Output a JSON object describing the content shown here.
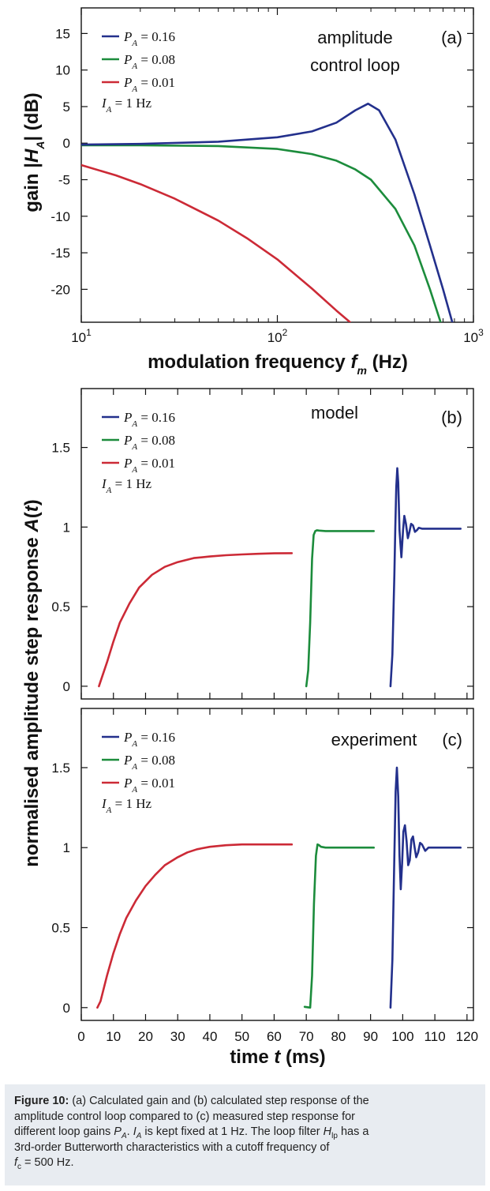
{
  "chart_data": [
    {
      "type": "line",
      "panel_tag": "(a)",
      "annotation": [
        "amplitude",
        "control loop"
      ],
      "ylabel": "gain |H_A| (dB)",
      "xlabel": "modulation frequency f_m (Hz)",
      "xscale": "log",
      "xlim": [
        10,
        1000
      ],
      "ylim": [
        -24.5,
        18.5
      ],
      "xticks": [
        "10^1",
        "10^2",
        "10^3"
      ],
      "yticks": [
        15,
        10,
        5,
        0,
        -5,
        -10,
        -15,
        -20
      ],
      "legend_position": "top-left",
      "legend_note": "I_A = 1 Hz",
      "series": [
        {
          "name": "P_A = 0.16",
          "color": "#23308c",
          "x": [
            10,
            20,
            50,
            100,
            150,
            200,
            250,
            290,
            330,
            400,
            500,
            600,
            700,
            780
          ],
          "y": [
            -0.2,
            -0.1,
            0.2,
            0.8,
            1.6,
            2.8,
            4.5,
            5.4,
            4.5,
            0.5,
            -7,
            -14,
            -20,
            -24.5
          ]
        },
        {
          "name": "P_A = 0.08",
          "color": "#1c8c3c",
          "x": [
            10,
            20,
            50,
            100,
            150,
            200,
            250,
            300,
            400,
            500,
            600,
            680
          ],
          "y": [
            -0.3,
            -0.3,
            -0.4,
            -0.8,
            -1.5,
            -2.4,
            -3.6,
            -5.0,
            -9.0,
            -14.0,
            -20.0,
            -24.5
          ]
        },
        {
          "name": "P_A = 0.01",
          "color": "#cc2a36",
          "x": [
            10,
            15,
            20,
            30,
            50,
            70,
            100,
            150,
            200,
            235
          ],
          "y": [
            -3.0,
            -4.4,
            -5.6,
            -7.6,
            -10.6,
            -13.0,
            -15.9,
            -19.9,
            -22.9,
            -24.5
          ]
        }
      ]
    },
    {
      "type": "line",
      "panel_tag": "(b)",
      "annotation": [
        "model"
      ],
      "ylabel": "",
      "xlabel": "",
      "xlim": [
        0,
        122
      ],
      "ylim": [
        -0.08,
        1.87
      ],
      "yticks": [
        "0",
        "0.5",
        "1",
        "1.5"
      ],
      "legend_position": "top-left",
      "legend_note": "I_A = 1 Hz",
      "series": [
        {
          "name": "P_A = 0.16",
          "color": "#23308c",
          "x": [
            96.2,
            96.8,
            97.4,
            97.7,
            98.0,
            98.3,
            98.6,
            99.0,
            99.6,
            100.1,
            100.5,
            101.0,
            101.6,
            102.1,
            102.6,
            103.2,
            103.8,
            104.4,
            105.0,
            106.0,
            108,
            112,
            118
          ],
          "y": [
            0,
            0.2,
            0.7,
            1.0,
            1.25,
            1.37,
            1.28,
            0.98,
            0.81,
            0.98,
            1.07,
            1.02,
            0.93,
            0.97,
            1.02,
            1.01,
            0.97,
            0.98,
            0.995,
            0.99,
            0.99,
            0.99,
            0.99
          ]
        },
        {
          "name": "P_A = 0.08",
          "color": "#1c8c3c",
          "x": [
            70.0,
            70.6,
            71.2,
            71.8,
            72.3,
            72.8,
            73.3,
            74,
            76,
            80,
            91
          ],
          "y": [
            0,
            0.1,
            0.4,
            0.8,
            0.95,
            0.975,
            0.98,
            0.978,
            0.975,
            0.975,
            0.975
          ]
        },
        {
          "name": "P_A = 0.01",
          "color": "#cc2a36",
          "x": [
            5.5,
            6,
            8,
            10,
            12,
            15,
            18,
            22,
            26,
            30,
            35,
            40,
            45,
            50,
            55,
            60,
            65.5
          ],
          "y": [
            0,
            0.03,
            0.15,
            0.28,
            0.4,
            0.52,
            0.62,
            0.7,
            0.75,
            0.78,
            0.805,
            0.815,
            0.823,
            0.828,
            0.832,
            0.835,
            0.836
          ]
        }
      ]
    },
    {
      "type": "line",
      "panel_tag": "(c)",
      "annotation": [
        "experiment"
      ],
      "ylabel": "",
      "xlabel": "time t (ms)",
      "xlim": [
        0,
        122
      ],
      "ylim": [
        -0.08,
        1.87
      ],
      "xticks": [
        "0",
        "10",
        "20",
        "30",
        "40",
        "50",
        "60",
        "70",
        "80",
        "90",
        "100",
        "110",
        "120"
      ],
      "yticks": [
        "0",
        "0.5",
        "1",
        "1.5"
      ],
      "legend_position": "top-left",
      "legend_note": "I_A = 1 Hz",
      "series": [
        {
          "name": "P_A = 0.16",
          "color": "#23308c",
          "x": [
            96.2,
            96.8,
            97.4,
            97.8,
            98.2,
            98.6,
            99.0,
            99.4,
            99.8,
            100.2,
            100.7,
            101.2,
            101.7,
            102.2,
            102.7,
            103.2,
            103.7,
            104.2,
            104.8,
            105.4,
            106,
            107,
            108,
            110,
            114,
            118
          ],
          "y": [
            0,
            0.3,
            0.95,
            1.35,
            1.5,
            1.32,
            0.95,
            0.74,
            0.9,
            1.1,
            1.14,
            1.04,
            0.89,
            0.92,
            1.05,
            1.07,
            1.0,
            0.94,
            0.97,
            1.03,
            1.02,
            0.98,
            1.0,
            1.0,
            1.0,
            1.0
          ]
        },
        {
          "name": "P_A = 0.08",
          "color": "#1c8c3c",
          "x": [
            69.5,
            71.2,
            71.8,
            72.4,
            73.0,
            73.5,
            74.0,
            74.6,
            76,
            78,
            82,
            86,
            91
          ],
          "y": [
            0.005,
            0.0,
            0.2,
            0.65,
            0.95,
            1.02,
            1.015,
            1.005,
            1.0,
            1.0,
            1.0,
            1.0,
            1.0
          ]
        },
        {
          "name": "P_A = 0.01",
          "color": "#cc2a36",
          "x": [
            5.0,
            6,
            8,
            10,
            12,
            14,
            17,
            20,
            23,
            26,
            30,
            33,
            36,
            40,
            45,
            50,
            55,
            60,
            65.5
          ],
          "y": [
            0,
            0.04,
            0.2,
            0.34,
            0.46,
            0.56,
            0.67,
            0.76,
            0.83,
            0.89,
            0.94,
            0.97,
            0.99,
            1.005,
            1.015,
            1.02,
            1.02,
            1.02,
            1.02
          ]
        }
      ]
    }
  ],
  "shared_ylabel": "normalised amplitude step response A(t)",
  "caption": {
    "label": "Figure 10:",
    "line1": "(a) Calculated gain and (b) calculated step response of the",
    "line2": "amplitude control loop compared to (c) measured step response for",
    "line3a": "different loop gains ",
    "PA": "P",
    "PA_sub": "A",
    "line3b": ". ",
    "IA": "I",
    "IA_sub": "A",
    "line3c": " is kept fixed at 1 Hz. The loop filter ",
    "H": "H",
    "H_sub": "lp",
    "line3d": " has a",
    "line4": "3rd-order Butterworth characteristics with a cutoff frequency of",
    "fc": "f",
    "fc_sub": "c",
    "line5": " = 500 Hz."
  }
}
